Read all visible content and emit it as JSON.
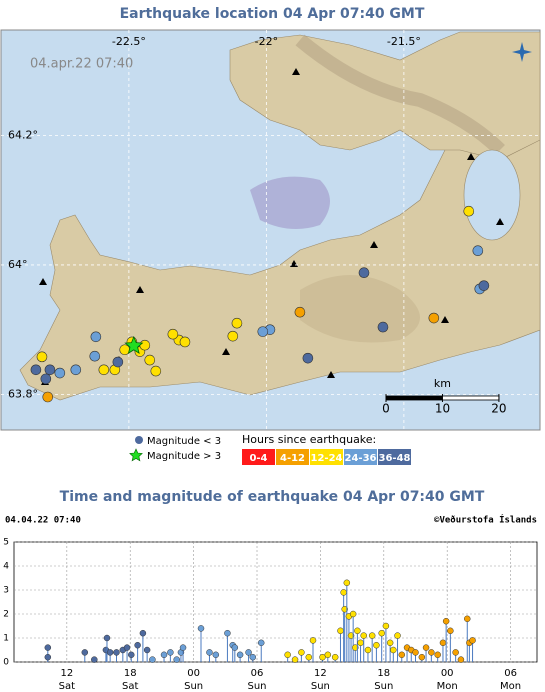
{
  "map": {
    "title": "Earthquake location   04 Apr 07:40 GMT",
    "timestamp": "04.apr.22  07:40",
    "lonlim": [
      -22.965,
      -21.005
    ],
    "latlim": [
      63.745,
      64.363
    ],
    "lonticks": [
      {
        "value": -22.5,
        "label": "-22.5°"
      },
      {
        "value": -22,
        "label": "-22°"
      },
      {
        "value": -21.5,
        "label": "-21.5°"
      }
    ],
    "latticks": [
      {
        "value": 64.2,
        "label": "64.2°"
      },
      {
        "value": 64,
        "label": "64°"
      },
      {
        "value": 63.8,
        "label": "63.8°"
      }
    ],
    "scale": {
      "unit": "km",
      "ticks": [
        0,
        10,
        20
      ]
    },
    "quakes": [
      {
        "lon": -21.264,
        "lat": 64.083,
        "color": "#ffe000"
      },
      {
        "lon": -22.107,
        "lat": 63.91,
        "color": "#ffe000"
      },
      {
        "lon": -22.122,
        "lat": 63.89,
        "color": "#ffe000"
      },
      {
        "lon": -22.318,
        "lat": 63.884,
        "color": "#ffe000"
      },
      {
        "lon": -22.34,
        "lat": 63.893,
        "color": "#ffe000"
      },
      {
        "lon": -22.296,
        "lat": 63.881,
        "color": "#ffe000"
      },
      {
        "lon": -22.424,
        "lat": 63.853,
        "color": "#ffe000"
      },
      {
        "lon": -22.402,
        "lat": 63.836,
        "color": "#ffe000"
      },
      {
        "lon": -22.591,
        "lat": 63.838,
        "color": "#ffe000"
      },
      {
        "lon": -22.551,
        "lat": 63.838,
        "color": "#ffe000"
      },
      {
        "lon": -22.816,
        "lat": 63.858,
        "color": "#ffe000"
      },
      {
        "lon": -22.515,
        "lat": 63.869,
        "color": "#ffe000"
      },
      {
        "lon": -22.46,
        "lat": 63.866,
        "color": "#ffe000"
      },
      {
        "lon": -22.489,
        "lat": 63.881,
        "color": "#ffe000"
      },
      {
        "lon": -22.442,
        "lat": 63.876,
        "color": "#ffe000"
      },
      {
        "lon": -21.878,
        "lat": 63.927,
        "color": "#f5a000"
      },
      {
        "lon": -21.391,
        "lat": 63.918,
        "color": "#f5a000"
      },
      {
        "lon": -22.795,
        "lat": 63.796,
        "color": "#f5a000"
      },
      {
        "lon": -21.987,
        "lat": 63.9,
        "color": "#6b9fd6"
      },
      {
        "lon": -22.013,
        "lat": 63.897,
        "color": "#6b9fd6"
      },
      {
        "lon": -22.62,
        "lat": 63.889,
        "color": "#6b9fd6"
      },
      {
        "lon": -22.624,
        "lat": 63.859,
        "color": "#6b9fd6"
      },
      {
        "lon": -22.693,
        "lat": 63.838,
        "color": "#6b9fd6"
      },
      {
        "lon": -22.751,
        "lat": 63.833,
        "color": "#6b9fd6"
      },
      {
        "lon": -21.224,
        "lat": 63.963,
        "color": "#6b9fd6"
      },
      {
        "lon": -21.231,
        "lat": 64.022,
        "color": "#6b9fd6"
      },
      {
        "lon": -21.645,
        "lat": 63.988,
        "color": "#4e6a9e"
      },
      {
        "lon": -21.576,
        "lat": 63.904,
        "color": "#4e6a9e"
      },
      {
        "lon": -21.849,
        "lat": 63.856,
        "color": "#4e6a9e"
      },
      {
        "lon": -22.838,
        "lat": 63.838,
        "color": "#4e6a9e"
      },
      {
        "lon": -22.787,
        "lat": 63.838,
        "color": "#4e6a9e"
      },
      {
        "lon": -22.802,
        "lat": 63.824,
        "color": "#4e6a9e"
      },
      {
        "lon": -22.54,
        "lat": 63.85,
        "color": "#4e6a9e"
      },
      {
        "lon": -21.209,
        "lat": 63.968,
        "color": "#4e6a9e"
      }
    ],
    "large_quakes": [
      {
        "lon": -22.482,
        "lat": 63.875,
        "color": "#22dd22"
      }
    ],
    "legend": {
      "small": "Magnitude < 3",
      "large": "Magnitude > 3",
      "hours": "Hours since earthquake:"
    }
  },
  "chart_data": {
    "type": "stem",
    "title": "Time and magnitude of earthquake   04 Apr 07:40 GMT",
    "date": "04.04.22 07:40",
    "credit": "©Veðurstofa Íslands",
    "xlim": [
      7,
      56.5
    ],
    "ylim": [
      0,
      5
    ],
    "yticks": [
      0,
      1,
      2,
      3,
      4,
      5
    ],
    "grid": true,
    "xticks": [
      {
        "value": 12,
        "label": "12"
      },
      {
        "value": 18,
        "label": "18"
      },
      {
        "value": 24,
        "label": "00"
      },
      {
        "value": 30,
        "label": "06"
      },
      {
        "value": 36,
        "label": "12"
      },
      {
        "value": 42,
        "label": "18"
      },
      {
        "value": 48,
        "label": "00"
      },
      {
        "value": 54,
        "label": "06"
      }
    ],
    "xtick_days": [
      "Sat",
      "Sat",
      "Sun",
      "Sun",
      "Sun",
      "Sun",
      "Mon",
      "Mon"
    ],
    "series": [
      {
        "name": "0-4",
        "color": "#ff1a1a",
        "x": [],
        "values": []
      },
      {
        "name": "4-12",
        "color": "#f5a000",
        "x": [
          43.7,
          44.2,
          44.6,
          45.0,
          45.6,
          46.0,
          46.5,
          47.1,
          47.6,
          47.9,
          48.3,
          48.8,
          49.3,
          49.9,
          50.1,
          50.4
        ],
        "values": [
          0.3,
          0.6,
          0.5,
          0.4,
          0.2,
          0.6,
          0.4,
          0.3,
          0.8,
          1.7,
          1.3,
          0.4,
          0.1,
          1.8,
          0.8,
          0.9
        ]
      },
      {
        "name": "12-24",
        "color": "#ffe000",
        "x": [
          32.9,
          33.6,
          34.2,
          34.9,
          35.3,
          36.2,
          36.7,
          37.4,
          37.9,
          38.2,
          38.3,
          38.5,
          38.7,
          38.9,
          39.1,
          39.3,
          39.5,
          39.8,
          40.1,
          40.5,
          40.9,
          41.3,
          41.8,
          42.2,
          42.6,
          42.9,
          43.3
        ],
        "values": [
          0.3,
          0.1,
          0.4,
          0.2,
          0.9,
          0.2,
          0.3,
          0.2,
          1.3,
          2.9,
          2.2,
          3.3,
          1.9,
          1.1,
          2.0,
          0.6,
          1.3,
          0.8,
          1.1,
          0.5,
          1.1,
          0.7,
          1.2,
          1.5,
          0.8,
          0.5,
          1.1
        ]
      },
      {
        "name": "24-36",
        "color": "#6b9fd6",
        "x": [
          20.1,
          21.2,
          21.8,
          22.4,
          22.8,
          23.0,
          24.7,
          25.5,
          26.1,
          27.2,
          27.7,
          27.9,
          28.4,
          29.2,
          29.6,
          30.4
        ],
        "values": [
          0.1,
          0.3,
          0.4,
          0.1,
          0.4,
          0.6,
          1.4,
          0.4,
          0.3,
          1.2,
          0.7,
          0.6,
          0.3,
          0.4,
          0.2,
          0.8
        ]
      },
      {
        "name": "36-48",
        "color": "#4e6a9e",
        "x": [
          10.2,
          10.2,
          13.7,
          14.6,
          15.7,
          15.8,
          16.1,
          16.7,
          17.3,
          17.7,
          18.1,
          18.7,
          19.2,
          19.6
        ],
        "values": [
          0.6,
          0.2,
          0.4,
          0.1,
          0.5,
          1.0,
          0.4,
          0.4,
          0.5,
          0.6,
          0.3,
          0.7,
          1.2,
          0.5
        ]
      }
    ]
  }
}
